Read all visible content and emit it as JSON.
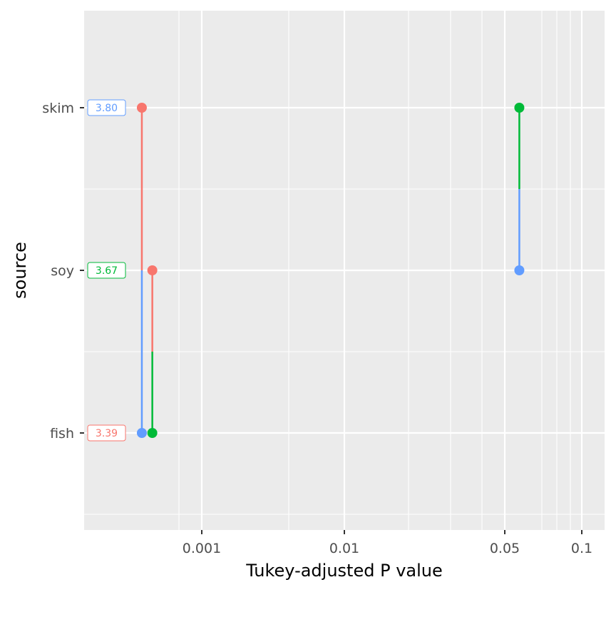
{
  "chart_data": {
    "type": "scatter",
    "title": "",
    "xlabel": "Tukey-adjusted P value",
    "ylabel": "source",
    "x_scale": "p-value transformed (log-like)",
    "x_ticks": [
      0.001,
      0.01,
      0.05,
      0.1
    ],
    "x_tick_labels": [
      "0.001",
      "0.01",
      "0.05",
      "0.1"
    ],
    "y_categories": [
      "fish",
      "soy",
      "skim"
    ],
    "grid": true,
    "level_colors": {
      "fish": "#F8766D",
      "soy": "#00BA38",
      "skim": "#619CFF"
    },
    "estimate_labels": [
      {
        "level": "skim",
        "text": "3.80"
      },
      {
        "level": "soy",
        "text": "3.67"
      },
      {
        "level": "fish",
        "text": "3.39"
      }
    ],
    "comparisons": [
      {
        "from": "fish",
        "to": "skim",
        "p": 0.00038
      },
      {
        "from": "fish",
        "to": "soy",
        "p": 0.00045
      },
      {
        "from": "soy",
        "to": "skim",
        "p": 0.057
      }
    ]
  }
}
